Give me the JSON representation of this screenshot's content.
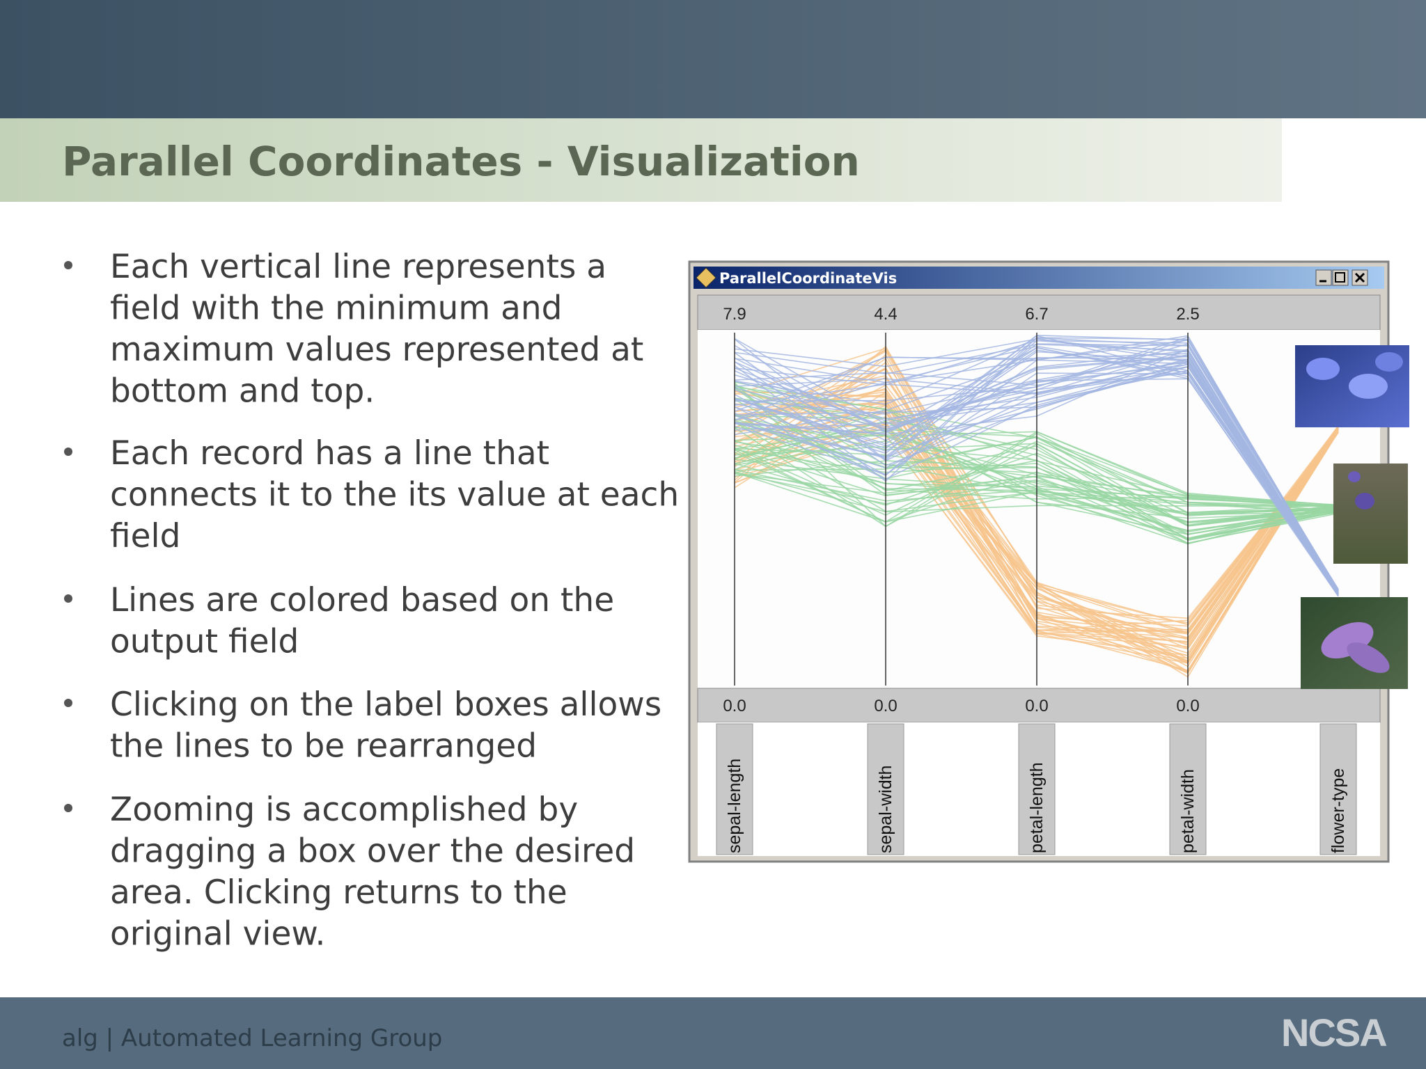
{
  "header": {
    "title": "Parallel Coordinates - Visualization"
  },
  "bullets": [
    [
      "Each vertical line represents a",
      "field with the minimum and",
      "maximum values represented at",
      "bottom and top."
    ],
    [
      "Each record has a line that",
      "connects it to the its value at each",
      "field"
    ],
    [
      "Lines are colored based on the",
      "output field"
    ],
    [
      "Clicking on the label boxes allows",
      "the lines to be rearranged"
    ],
    [
      "Zooming is accomplished by",
      "dragging a box over the desired",
      "area.  Clicking returns to the",
      "original view."
    ]
  ],
  "window": {
    "title": "ParallelCoordinateVis",
    "max_labels": [
      "7.9",
      "4.4",
      "6.7",
      "2.5"
    ],
    "min_labels": [
      "0.0",
      "0.0",
      "0.0",
      "0.0"
    ],
    "fields": [
      "sepal-length",
      "sepal-width",
      "petal-length",
      "petal-width",
      "flower-type"
    ]
  },
  "footer": {
    "text": "alg | Automated Learning Group",
    "logo": "NCSA"
  }
}
